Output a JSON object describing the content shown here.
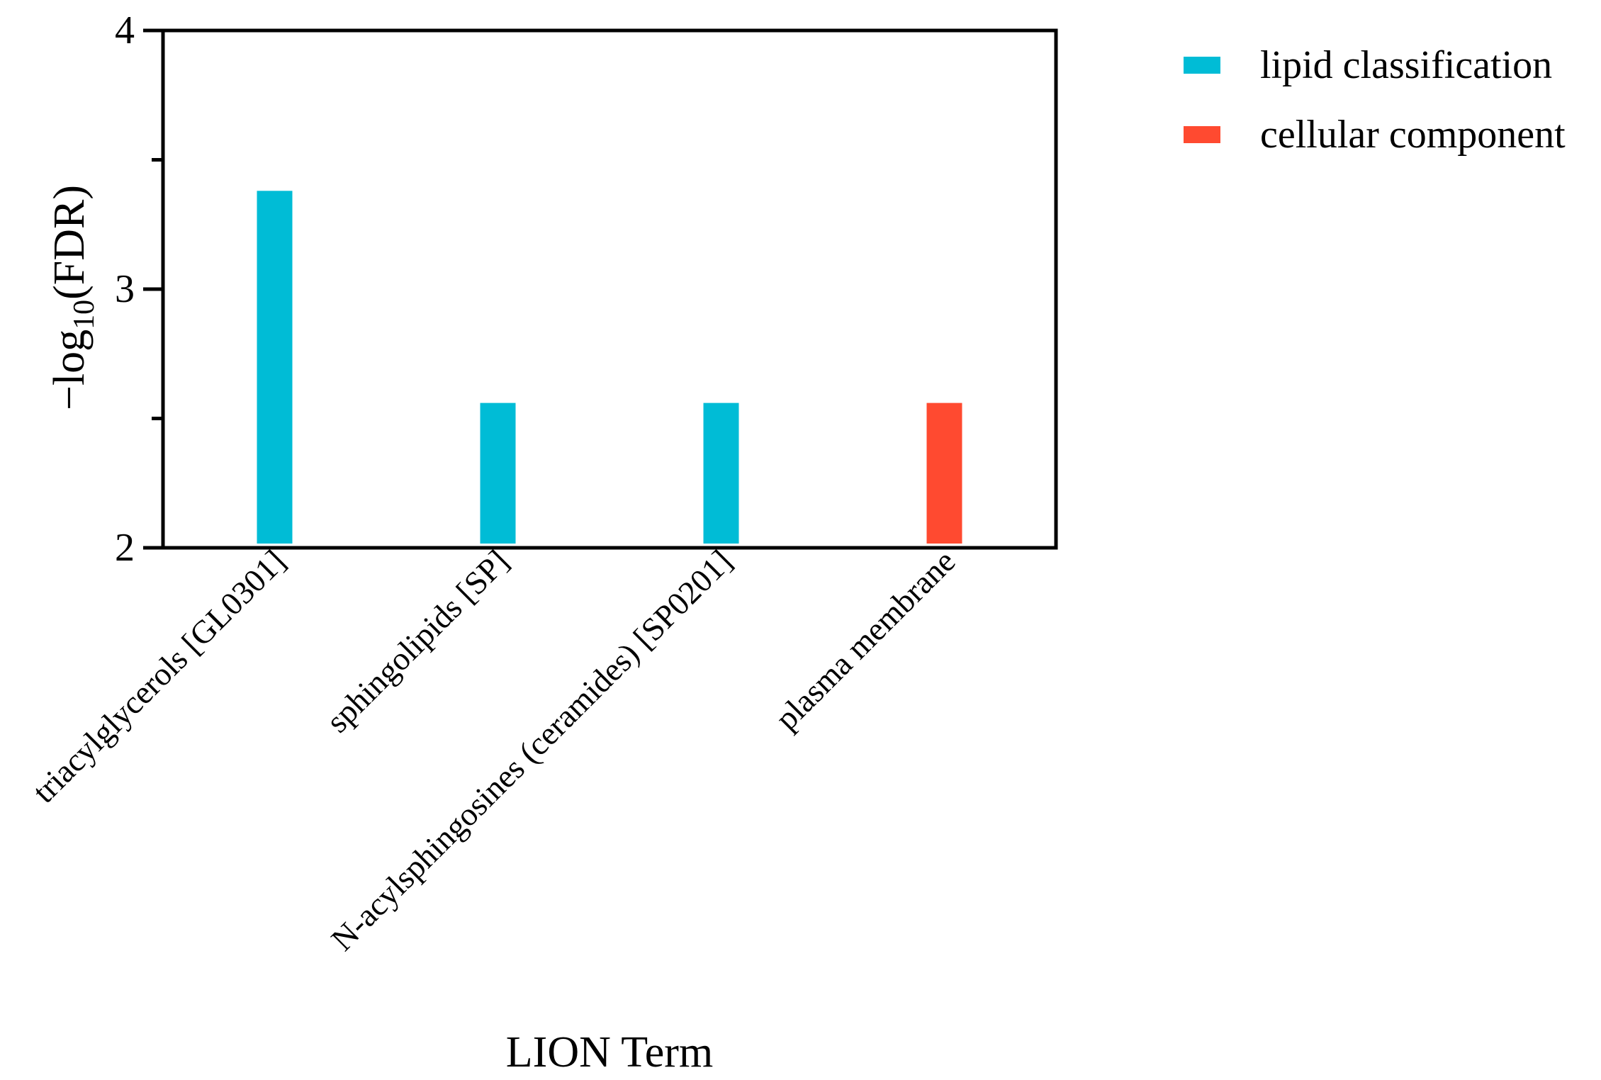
{
  "chart_data": {
    "type": "bar",
    "title": "",
    "xlabel": "LION Term",
    "ylabel_main": "−log",
    "ylabel_sub": "10",
    "ylabel_tail": "(FDR)",
    "ylim": [
      2,
      4
    ],
    "yticks": [
      2,
      3,
      4
    ],
    "yticks_minor": [
      2.5,
      3.5
    ],
    "grid": false,
    "legend_position": "top-right",
    "categories": [
      "triacylglycerols [GL0301]",
      "sphingolipids [SP]",
      "N-acylsphingosines (ceramides) [SP0201]",
      "plasma membrane"
    ],
    "values": [
      3.38,
      2.56,
      2.56,
      2.56
    ],
    "groups": [
      "lipid classification",
      "lipid classification",
      "lipid classification",
      "cellular component"
    ],
    "legend": [
      {
        "name": "lipid classification",
        "color": "#00BCD6"
      },
      {
        "name": "cellular component",
        "color": "#FF4A30"
      }
    ]
  }
}
